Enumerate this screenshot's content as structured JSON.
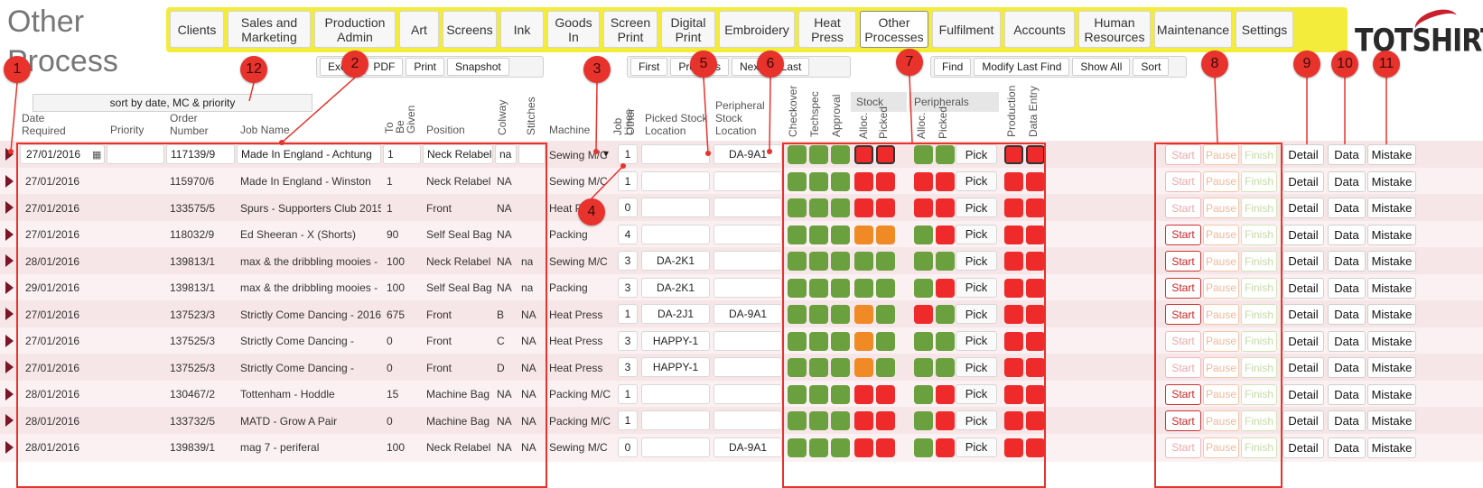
{
  "page": {
    "title": "Other Process"
  },
  "nav": [
    {
      "label": "Clients",
      "active": false
    },
    {
      "label": "Sales and Marketing",
      "active": false
    },
    {
      "label": "Production Admin",
      "active": false
    },
    {
      "label": "Art",
      "active": false
    },
    {
      "label": "Screens",
      "active": false
    },
    {
      "label": "Ink",
      "active": false
    },
    {
      "label": "Goods In",
      "active": false
    },
    {
      "label": "Screen Print",
      "active": false
    },
    {
      "label": "Digital Print",
      "active": false
    },
    {
      "label": "Embroidery",
      "active": false
    },
    {
      "label": "Heat Press",
      "active": false
    },
    {
      "label": "Other Processes",
      "active": true
    },
    {
      "label": "Fulfilment",
      "active": false
    },
    {
      "label": "Accounts",
      "active": false
    },
    {
      "label": "Human Resources",
      "active": false
    },
    {
      "label": "Maintenance",
      "active": false
    },
    {
      "label": "Settings",
      "active": false
    }
  ],
  "toolbar_export": [
    "Excel",
    "PDF",
    "Print",
    "Snapshot"
  ],
  "toolbar_nav": [
    "First",
    "Previous",
    "Next",
    "Last"
  ],
  "toolbar_find": [
    "Find",
    "Modify Last Find",
    "Show All",
    "Sort"
  ],
  "logo": {
    "text": "TOTSHIRTS"
  },
  "sort_label": "sort by date, MC & priority",
  "headers": {
    "date_required": "Date Required",
    "priority": "Priority",
    "order_number": "Order Number",
    "job_name": "Job Name",
    "to_be_given": "To Be Given",
    "position": "Position",
    "colway": "Colway",
    "stitches": "Stitches",
    "machine": "Machine",
    "job_lines": "Job Lines",
    "other": "Other",
    "picked_stock_location": "Picked Stock Location",
    "peripheral_stock_location": "Peripheral Stock Location",
    "checkover": "Checkover",
    "techspec": "Techspec",
    "approval": "Approval",
    "stock": "Stock",
    "peripherals": "Peripherals",
    "alloc": "Alloc.",
    "picked": "Picked",
    "production": "Production",
    "data_entry": "Data Entry"
  },
  "labels": {
    "pick": "Pick",
    "start": "Start",
    "pause": "Pause",
    "finish": "Finish",
    "detail": "Detail",
    "data": "Data",
    "mistake": "Mistake"
  },
  "rows": [
    {
      "date": "27/01/2016",
      "order": "117139/9",
      "job": "Made In England - Achtung",
      "given": "1",
      "position": "Neck Relabel",
      "colway": "na",
      "stitches": "",
      "machine": "Sewing M/C",
      "lines": "1",
      "picked_loc": "",
      "periph_loc": "DA-9A1",
      "status": [
        "g",
        "g",
        "g",
        "r",
        "r",
        "g",
        "g",
        "r",
        "r"
      ],
      "start_active": false
    },
    {
      "date": "27/01/2016",
      "order": "115970/6",
      "job": "Made In England - Winston",
      "given": "1",
      "position": "Neck Relabel",
      "colway": "NA",
      "stitches": "",
      "machine": "Sewing M/C",
      "lines": "1",
      "picked_loc": "",
      "periph_loc": "",
      "status": [
        "g",
        "g",
        "g",
        "r",
        "r",
        "r",
        "r",
        "r",
        "r"
      ],
      "start_active": false
    },
    {
      "date": "27/01/2016",
      "order": "133575/5",
      "job": "Spurs - Supporters Club 2015",
      "given": "1",
      "position": "Front",
      "colway": "NA",
      "stitches": "",
      "machine": "Heat Press",
      "lines": "0",
      "picked_loc": "",
      "periph_loc": "",
      "status": [
        "g",
        "g",
        "g",
        "r",
        "r",
        "r",
        "r",
        "r",
        "r"
      ],
      "start_active": false
    },
    {
      "date": "27/01/2016",
      "order": "118032/9",
      "job": "Ed Sheeran - X (Shorts)",
      "given": "90",
      "position": "Self Seal Bag",
      "colway": "NA",
      "stitches": "",
      "machine": "Packing",
      "lines": "4",
      "picked_loc": "",
      "periph_loc": "",
      "status": [
        "g",
        "g",
        "g",
        "o",
        "o",
        "g",
        "r",
        "r",
        "r"
      ],
      "start_active": true
    },
    {
      "date": "28/01/2016",
      "order": "139813/1",
      "job": "max & the dribbling mooies -",
      "given": "100",
      "position": "Neck Relabel",
      "colway": "NA",
      "stitches": "na",
      "machine": "Sewing M/C",
      "lines": "3",
      "picked_loc": "DA-2K1",
      "periph_loc": "",
      "status": [
        "g",
        "g",
        "g",
        "g",
        "g",
        "g",
        "g",
        "r",
        "r"
      ],
      "start_active": true
    },
    {
      "date": "29/01/2016",
      "order": "139813/1",
      "job": "max & the dribbling mooies -",
      "given": "100",
      "position": "Self Seal Bag",
      "colway": "NA",
      "stitches": "na",
      "machine": "Packing",
      "lines": "3",
      "picked_loc": "DA-2K1",
      "periph_loc": "",
      "status": [
        "g",
        "g",
        "g",
        "g",
        "g",
        "g",
        "r",
        "r",
        "r"
      ],
      "start_active": true
    },
    {
      "date": "27/01/2016",
      "order": "137523/3",
      "job": "Strictly Come Dancing - 2016",
      "given": "675",
      "position": "Front",
      "colway": "B",
      "stitches": "NA",
      "machine": "Heat Press",
      "lines": "1",
      "picked_loc": "DA-2J1",
      "periph_loc": "DA-9A1",
      "status": [
        "g",
        "g",
        "g",
        "o",
        "g",
        "r",
        "g",
        "r",
        "r"
      ],
      "start_active": true
    },
    {
      "date": "27/01/2016",
      "order": "137525/3",
      "job": "Strictly Come Dancing -",
      "given": "0",
      "position": "Front",
      "colway": "C",
      "stitches": "NA",
      "machine": "Heat Press",
      "lines": "3",
      "picked_loc": "HAPPY-1",
      "periph_loc": "",
      "status": [
        "g",
        "g",
        "g",
        "o",
        "g",
        "g",
        "g",
        "r",
        "r"
      ],
      "start_active": false
    },
    {
      "date": "27/01/2016",
      "order": "137525/3",
      "job": "Strictly Come Dancing -",
      "given": "0",
      "position": "Front",
      "colway": "D",
      "stitches": "NA",
      "machine": "Heat Press",
      "lines": "3",
      "picked_loc": "HAPPY-1",
      "periph_loc": "",
      "status": [
        "g",
        "g",
        "g",
        "o",
        "g",
        "g",
        "g",
        "r",
        "r"
      ],
      "start_active": false
    },
    {
      "date": "28/01/2016",
      "order": "130467/2",
      "job": "Tottenham - Hoddle",
      "given": "15",
      "position": "Machine Bag",
      "colway": "NA",
      "stitches": "NA",
      "machine": "Packing M/C",
      "lines": "1",
      "picked_loc": "",
      "periph_loc": "",
      "status": [
        "g",
        "g",
        "g",
        "r",
        "r",
        "g",
        "r",
        "r",
        "r"
      ],
      "start_active": true
    },
    {
      "date": "28/01/2016",
      "order": "133732/5",
      "job": "MATD - Grow A Pair",
      "given": "0",
      "position": "Machine Bag",
      "colway": "NA",
      "stitches": "NA",
      "machine": "Packing M/C",
      "lines": "1",
      "picked_loc": "",
      "periph_loc": "",
      "status": [
        "g",
        "g",
        "g",
        "r",
        "r",
        "g",
        "r",
        "r",
        "r"
      ],
      "start_active": true
    },
    {
      "date": "28/01/2016",
      "order": "139839/1",
      "job": "mag 7 - periferal",
      "given": "100",
      "position": "Neck Relabel",
      "colway": "NA",
      "stitches": "NA",
      "machine": "Sewing M/C",
      "lines": "0",
      "picked_loc": "",
      "periph_loc": "DA-9A1",
      "status": [
        "g",
        "g",
        "g",
        "r",
        "r",
        "g",
        "r",
        "r",
        "r"
      ],
      "start_active": false
    }
  ],
  "markers": [
    "1",
    "2",
    "3",
    "4",
    "5",
    "6",
    "7",
    "8",
    "9",
    "10",
    "11",
    "12"
  ],
  "colors": {
    "accent_nav": "#f3ec3a",
    "marker": "#e8322c",
    "status_green": "#6aa13e",
    "status_red": "#ee2a2a",
    "status_orange": "#f08a24"
  }
}
